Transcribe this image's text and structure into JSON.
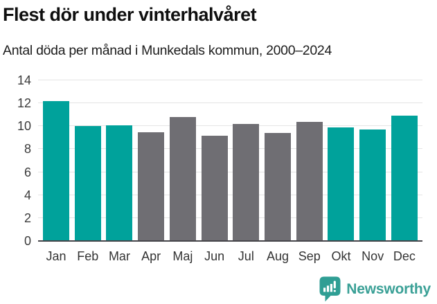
{
  "header": {
    "title": "Flest dör under vinterhalvåret",
    "subtitle": "Antal döda per månad i Munkedals kommun, 2000–2024"
  },
  "chart_data": {
    "type": "bar",
    "title": "Flest dör under vinterhalvåret",
    "subtitle": "Antal döda per månad i Munkedals kommun, 2000–2024",
    "categories": [
      "Jan",
      "Feb",
      "Mar",
      "Apr",
      "Maj",
      "Jun",
      "Jul",
      "Aug",
      "Sep",
      "Okt",
      "Nov",
      "Dec"
    ],
    "values": [
      12.2,
      10.0,
      10.1,
      9.5,
      10.8,
      9.2,
      10.2,
      9.4,
      10.4,
      9.9,
      9.7,
      10.9
    ],
    "bar_colors": [
      "teal",
      "teal",
      "teal",
      "gray",
      "gray",
      "gray",
      "gray",
      "gray",
      "gray",
      "teal",
      "teal",
      "teal"
    ],
    "colors": {
      "teal": "#00a29b",
      "gray": "#6f6e73",
      "gridline": "#e4e4e4",
      "axis_line": "#454449"
    },
    "xlabel": "",
    "ylabel": "",
    "ylim": [
      0,
      14
    ],
    "yticks": [
      0,
      2,
      4,
      6,
      8,
      10,
      12,
      14
    ],
    "grid": "horizontal",
    "legend": "none"
  },
  "footer": {
    "brand": "Newsworthy",
    "logo_icon": "bar-chart-speech-bubble-icon",
    "brand_color": "#3aa096",
    "icon_color": "#2f9e94"
  }
}
